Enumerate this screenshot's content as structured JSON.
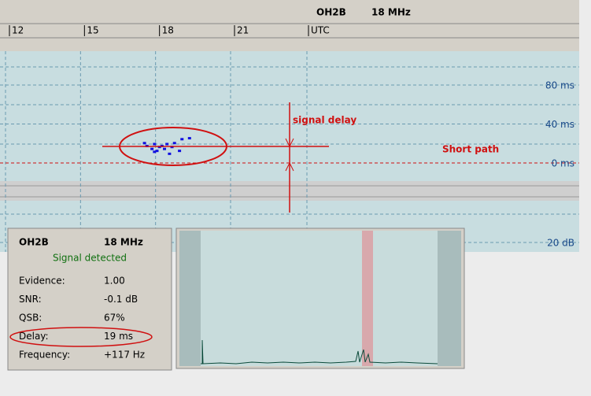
{
  "header": {
    "station": "OH2B",
    "band": "18 MHz"
  },
  "delay_plot": {
    "xticks": [
      12,
      15,
      18,
      21
    ],
    "x_unit": "UTC",
    "yticks": [
      {
        "value": 80,
        "label": "80 ms"
      },
      {
        "value": 40,
        "label": "40 ms"
      },
      {
        "value": 0,
        "label": "0 ms"
      }
    ],
    "lower_label": "20 dB",
    "points": {
      "x": [
        17.4,
        17.5,
        17.7,
        17.8,
        17.9,
        18.1,
        18.2,
        18.3,
        18.4,
        18.5,
        18.6,
        18.8,
        18.9,
        19.2,
        18.0,
        17.8
      ],
      "y": [
        20,
        17,
        14,
        19,
        12,
        17,
        14,
        19,
        9,
        16,
        20,
        12,
        24,
        25,
        16,
        11
      ]
    },
    "annotations": {
      "delay": "signal delay",
      "path": "Short path"
    }
  },
  "info": {
    "station": "OH2B",
    "band": "18 MHz",
    "status": "Signal detected",
    "rows": [
      [
        "Evidence:",
        "1.00"
      ],
      [
        "SNR:",
        "-0.1 dB"
      ],
      [
        "QSB:",
        "67%"
      ],
      [
        "Delay:",
        "19 ms"
      ],
      [
        "Frequency:",
        "+117 Hz"
      ]
    ]
  }
}
